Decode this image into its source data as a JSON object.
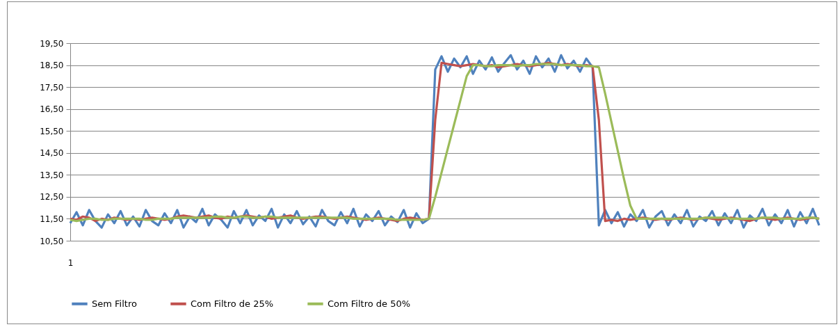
{
  "chart_data": {
    "type": "line",
    "categories": [
      "1",
      null,
      null,
      null,
      null,
      null,
      null,
      null,
      null,
      null,
      null,
      null,
      null,
      null,
      null,
      null,
      null,
      null,
      null,
      null,
      null,
      null,
      null,
      null,
      null,
      null,
      null,
      null,
      null,
      null,
      null,
      null,
      null,
      null,
      null,
      null,
      null,
      null,
      null,
      null,
      null,
      null,
      null,
      null,
      null,
      null,
      null,
      null,
      null,
      null,
      null,
      null,
      null,
      null,
      null,
      null,
      null,
      null,
      null,
      null,
      null,
      null,
      null,
      null,
      null,
      null,
      null,
      null,
      null,
      null,
      null,
      null,
      null,
      null,
      null,
      null,
      null,
      null,
      null,
      null,
      null,
      null,
      null,
      null,
      null,
      null,
      null,
      null,
      null,
      null,
      null,
      null,
      null,
      null,
      null,
      null,
      null,
      null,
      null,
      null,
      null,
      null,
      null,
      null,
      null,
      null,
      null,
      null,
      null,
      null,
      null,
      null,
      null,
      null,
      null,
      null,
      null,
      null,
      null,
      null
    ],
    "series": [
      {
        "name": "Sem Filtro",
        "color": "#4f81bd",
        "values": [
          11.3,
          11.8,
          11.2,
          11.9,
          11.4,
          11.1,
          11.7,
          11.3,
          11.85,
          11.2,
          11.6,
          11.15,
          11.9,
          11.4,
          11.2,
          11.75,
          11.3,
          11.9,
          11.1,
          11.6,
          11.35,
          11.95,
          11.2,
          11.7,
          11.45,
          11.1,
          11.85,
          11.3,
          11.9,
          11.2,
          11.65,
          11.4,
          11.95,
          11.1,
          11.7,
          11.3,
          11.85,
          11.25,
          11.6,
          11.15,
          11.9,
          11.4,
          11.2,
          11.8,
          11.3,
          11.95,
          11.15,
          11.7,
          11.4,
          11.85,
          11.2,
          11.6,
          11.35,
          11.9,
          11.1,
          11.75,
          11.3,
          11.5,
          18.3,
          18.9,
          18.2,
          18.8,
          18.4,
          18.9,
          18.1,
          18.7,
          18.3,
          18.85,
          18.2,
          18.6,
          18.95,
          18.3,
          18.7,
          18.1,
          18.9,
          18.4,
          18.8,
          18.2,
          18.95,
          18.35,
          18.7,
          18.2,
          18.8,
          18.4,
          11.2,
          11.9,
          11.3,
          11.8,
          11.15,
          11.7,
          11.4,
          11.9,
          11.1,
          11.6,
          11.85,
          11.2,
          11.7,
          11.3,
          11.9,
          11.15,
          11.6,
          11.4,
          11.85,
          11.2,
          11.75,
          11.3,
          11.9,
          11.1,
          11.65,
          11.4,
          11.95,
          11.2,
          11.7,
          11.3,
          11.9,
          11.15,
          11.8,
          11.3,
          11.95,
          11.2
        ]
      },
      {
        "name": "Com Filtro de 25%",
        "color": "#c0504d",
        "values": [
          11.5,
          11.45,
          11.6,
          11.55,
          11.4,
          11.5,
          11.45,
          11.55,
          11.5,
          11.45,
          11.5,
          11.45,
          11.5,
          11.55,
          11.5,
          11.45,
          11.5,
          11.6,
          11.65,
          11.6,
          11.55,
          11.6,
          11.65,
          11.55,
          11.5,
          11.6,
          11.55,
          11.6,
          11.65,
          11.6,
          11.55,
          11.6,
          11.5,
          11.55,
          11.6,
          11.65,
          11.55,
          11.5,
          11.55,
          11.6,
          11.6,
          11.55,
          11.5,
          11.55,
          11.6,
          11.55,
          11.5,
          11.45,
          11.5,
          11.55,
          11.5,
          11.45,
          11.4,
          11.5,
          11.55,
          11.5,
          11.45,
          11.5,
          16.0,
          18.6,
          18.55,
          18.5,
          18.45,
          18.5,
          18.55,
          18.5,
          18.45,
          18.5,
          18.4,
          18.45,
          18.5,
          18.55,
          18.5,
          18.45,
          18.5,
          18.55,
          18.6,
          18.55,
          18.5,
          18.55,
          18.5,
          18.45,
          18.5,
          18.45,
          16.0,
          11.4,
          11.45,
          11.4,
          11.5,
          11.45,
          11.5,
          11.55,
          11.5,
          11.45,
          11.5,
          11.45,
          11.5,
          11.55,
          11.5,
          11.45,
          11.5,
          11.55,
          11.5,
          11.45,
          11.5,
          11.55,
          11.5,
          11.45,
          11.4,
          11.5,
          11.55,
          11.5,
          11.45,
          11.5,
          11.55,
          11.5,
          11.45,
          11.5,
          11.55,
          11.5
        ]
      },
      {
        "name": "Com Filtro de 50%",
        "color": "#9bbb59",
        "values": [
          11.45,
          11.4,
          11.45,
          11.5,
          11.5,
          11.45,
          11.45,
          11.5,
          11.5,
          11.5,
          11.5,
          11.5,
          11.45,
          11.45,
          11.5,
          11.5,
          11.5,
          11.55,
          11.55,
          11.55,
          11.55,
          11.55,
          11.55,
          11.6,
          11.6,
          11.55,
          11.55,
          11.6,
          11.6,
          11.55,
          11.55,
          11.6,
          11.6,
          11.55,
          11.55,
          11.55,
          11.55,
          11.55,
          11.55,
          11.55,
          11.55,
          11.55,
          11.55,
          11.55,
          11.55,
          11.5,
          11.5,
          11.5,
          11.5,
          11.5,
          11.5,
          11.5,
          11.45,
          11.45,
          11.45,
          11.45,
          11.45,
          11.5,
          12.5,
          13.6,
          14.7,
          15.8,
          16.9,
          18.0,
          18.5,
          18.5,
          18.45,
          18.45,
          18.5,
          18.5,
          18.5,
          18.45,
          18.5,
          18.5,
          18.55,
          18.55,
          18.55,
          18.55,
          18.5,
          18.5,
          18.5,
          18.5,
          18.45,
          18.45,
          18.4,
          17.2,
          15.9,
          14.6,
          13.3,
          12.1,
          11.5,
          11.5,
          11.5,
          11.5,
          11.5,
          11.5,
          11.5,
          11.5,
          11.5,
          11.5,
          11.5,
          11.55,
          11.55,
          11.55,
          11.55,
          11.5,
          11.5,
          11.5,
          11.5,
          11.5,
          11.55,
          11.55,
          11.55,
          11.5,
          11.5,
          11.5,
          11.5,
          11.55,
          11.55,
          11.5
        ]
      }
    ],
    "ylim": [
      10.5,
      19.5
    ],
    "yticks": [
      {
        "value": 10.5,
        "label": "10,50"
      },
      {
        "value": 11.5,
        "label": "11,50"
      },
      {
        "value": 12.5,
        "label": "12,50"
      },
      {
        "value": 13.5,
        "label": "13,50"
      },
      {
        "value": 14.5,
        "label": "14,50"
      },
      {
        "value": 15.5,
        "label": "15,50"
      },
      {
        "value": 16.5,
        "label": "16,50"
      },
      {
        "value": 17.5,
        "label": "17,50"
      },
      {
        "value": 18.5,
        "label": "18,50"
      },
      {
        "value": 19.5,
        "label": "19,50"
      }
    ],
    "grid": "y",
    "legend": "bottom",
    "marker": "none",
    "line_style": "solid"
  }
}
